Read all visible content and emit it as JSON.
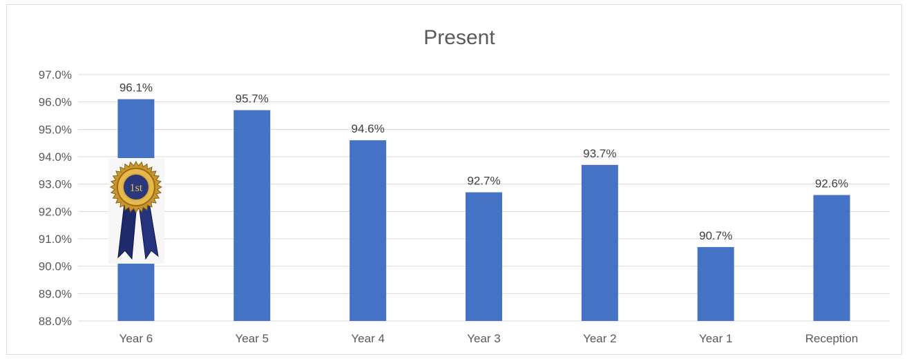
{
  "chart_data": {
    "type": "bar",
    "title": "Present",
    "xlabel": "",
    "ylabel": "",
    "categories": [
      "Year 6",
      "Year 5",
      "Year 4",
      "Year 3",
      "Year 2",
      "Year 1",
      "Reception"
    ],
    "values": [
      96.1,
      95.7,
      94.6,
      92.7,
      93.7,
      90.7,
      92.6
    ],
    "data_labels": [
      "96.1%",
      "95.7%",
      "94.6%",
      "92.7%",
      "93.7%",
      "90.7%",
      "92.6%"
    ],
    "ylim": [
      88.0,
      97.0
    ],
    "y_ticks": [
      88.0,
      89.0,
      90.0,
      91.0,
      92.0,
      93.0,
      94.0,
      95.0,
      96.0,
      97.0
    ],
    "y_tick_labels": [
      "88.0%",
      "89.0%",
      "90.0%",
      "91.0%",
      "92.0%",
      "93.0%",
      "94.0%",
      "95.0%",
      "96.0%",
      "97.0%"
    ],
    "grid": true,
    "legend": "none",
    "bar_color": "#4472c4",
    "gridline_color": "#d9d9d9",
    "badge": {
      "icon": "first-place-ribbon-icon",
      "text": "1st",
      "on_category": "Year 6"
    }
  }
}
